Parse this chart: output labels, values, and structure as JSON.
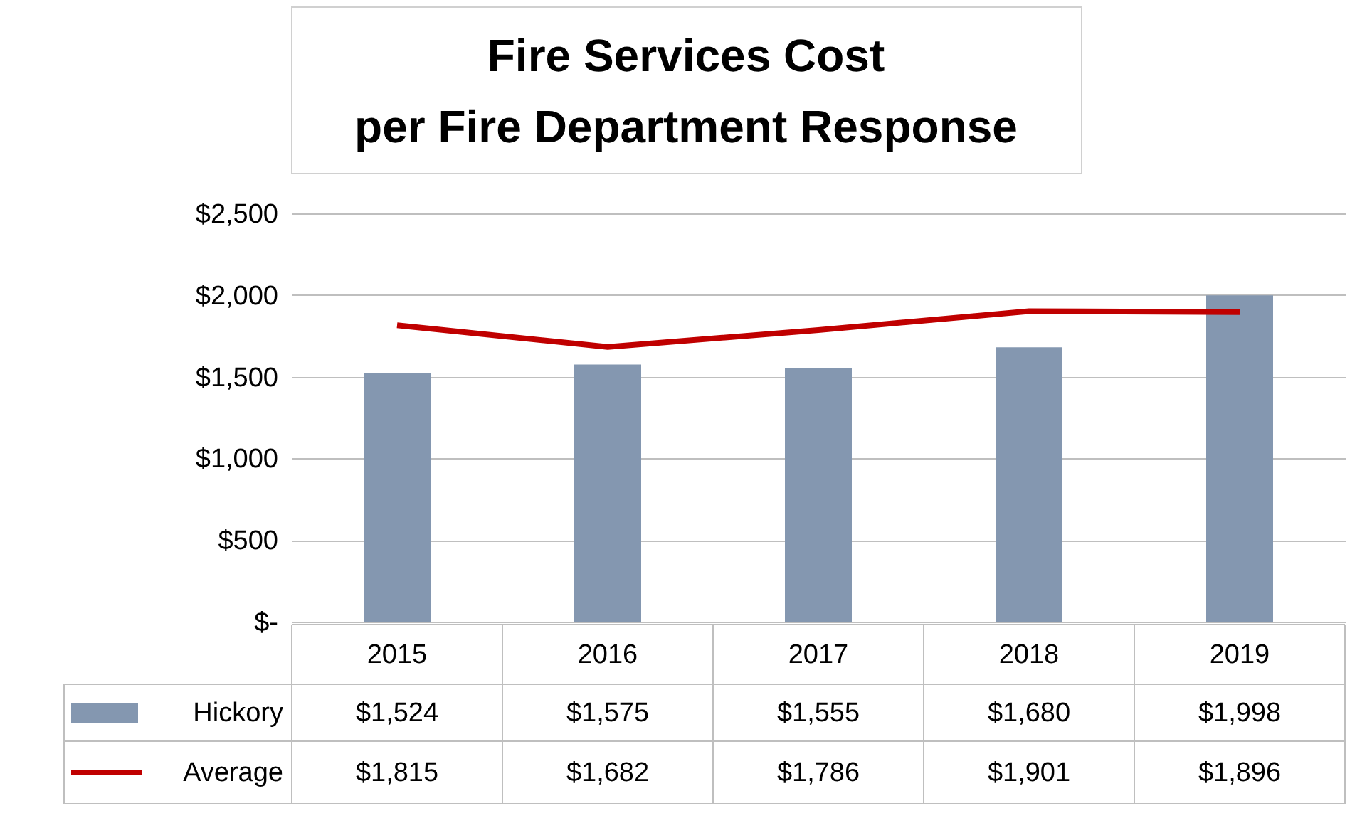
{
  "chart_data": {
    "type": "bar",
    "title": "Fire Services Cost\nper Fire Department Response",
    "categories": [
      "2015",
      "2016",
      "2017",
      "2018",
      "2019"
    ],
    "series": [
      {
        "name": "Hickory",
        "color": "#8497b0",
        "values": [
          1524,
          1575,
          1555,
          1680,
          1998
        ],
        "value_labels": [
          "$1,524",
          "$1,575",
          "$1,555",
          "$1,680",
          "$1,998"
        ]
      },
      {
        "name": "Average",
        "type": "line",
        "color": "#c00000",
        "values": [
          1815,
          1682,
          1786,
          1901,
          1896
        ],
        "value_labels": [
          "$1,815",
          "$1,682",
          "$1,786",
          "$1,901",
          "$1,896"
        ]
      }
    ],
    "ylim": [
      0,
      2500
    ],
    "yticks": [
      {
        "value": 0,
        "label": "$-"
      },
      {
        "value": 500,
        "label": "$500"
      },
      {
        "value": 1000,
        "label": "$1,000"
      },
      {
        "value": 1500,
        "label": "$1,500"
      },
      {
        "value": 2000,
        "label": "$2,000"
      },
      {
        "value": 2500,
        "label": "$2,500"
      }
    ],
    "grid": "y",
    "legend": "bottom",
    "marker": "none",
    "line_style": "solid"
  }
}
